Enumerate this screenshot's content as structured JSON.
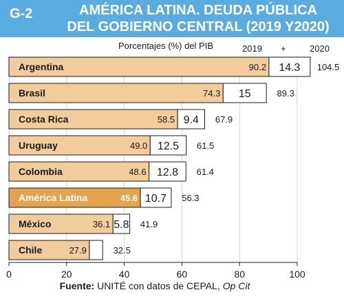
{
  "header": {
    "code": "G-2",
    "title_line1": "AMÉRICA LATINA. DEUDA PÚBLICA",
    "title_line2": "DEL GOBIERNO CENTRAL (2019 Y2020)"
  },
  "colors": {
    "header_bg": "#5aace0",
    "bar_2019": "#f3cc9c",
    "bar_2019_highlight": "#e4a34e",
    "bar_increase": "#ffffff",
    "outline": "#1a1a1a"
  },
  "chart_data": {
    "type": "bar",
    "orientation": "horizontal",
    "stacked": true,
    "subtitle": "Porcentajes (%) del PIB",
    "column_headers": [
      "2019",
      "+",
      "2020"
    ],
    "categories": [
      "Argentina",
      "Brasil",
      "Costa Rica",
      "Uruguay",
      "Colombia",
      "América Latina",
      "México",
      "Chile"
    ],
    "highlight": "América Latina",
    "series": [
      {
        "name": "2019",
        "values": [
          90.2,
          74.3,
          58.5,
          49.0,
          48.6,
          45.6,
          36.1,
          27.9
        ],
        "labels": [
          "90.2",
          "74.3",
          "58.5",
          "49.0",
          "48.6",
          "45.6",
          "36.1",
          "27.9"
        ]
      },
      {
        "name": "+",
        "values": [
          14.3,
          15.0,
          9.4,
          12.5,
          12.8,
          10.7,
          5.8,
          4.6
        ],
        "labels": [
          "14.3",
          "15",
          "9.4",
          "12.5",
          "12.8",
          "10.7",
          "5.8",
          ""
        ]
      }
    ],
    "totals": {
      "name": "2020",
      "values": [
        104.5,
        89.3,
        67.9,
        61.5,
        61.4,
        56.3,
        41.9,
        32.5
      ],
      "labels": [
        "104.5",
        "89.3",
        "67.9",
        "61.5",
        "61.4",
        "56.3",
        "41.9",
        "32.5"
      ]
    },
    "xlim": [
      0,
      100
    ],
    "xticks": [
      0,
      20,
      40,
      60,
      80,
      100
    ],
    "xtick_labels": [
      "0",
      "20",
      "40",
      "60",
      "80",
      "100"
    ],
    "grid": true,
    "source_label": "Fuente:",
    "source_text": " UNITÉ con datos de CEPAL, ",
    "source_ref": "Op Cit"
  }
}
